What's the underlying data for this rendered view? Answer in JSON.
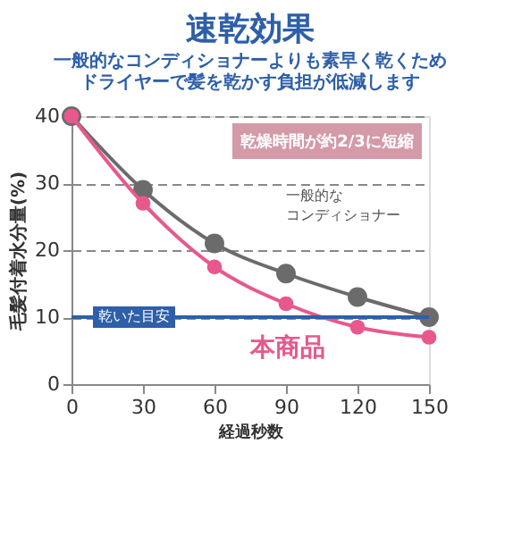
{
  "chart_data": {
    "type": "line",
    "title": "速乾効果",
    "subtitle": [
      "一般的なコンディショナーよりも素早く乾くため",
      "ドライヤーで髪を乾かす負担が低減します"
    ],
    "xlabel": "経過秒数",
    "ylabel": "毛髪付着水分量(%)",
    "x": [
      0,
      30,
      60,
      90,
      120,
      150
    ],
    "series": [
      {
        "name": "一般的なコンディショナー",
        "color": "#6b6b6b",
        "values": [
          40,
          29,
          21,
          16.5,
          13,
          10
        ]
      },
      {
        "name": "本商品",
        "color": "#e8588c",
        "values": [
          40,
          27,
          17.5,
          12,
          8.5,
          7
        ]
      }
    ],
    "xlim": [
      0,
      150
    ],
    "xticks": [
      0,
      30,
      60,
      90,
      120,
      150
    ],
    "ylim": [
      0,
      40
    ],
    "yticks": [
      0,
      10,
      20,
      30,
      40
    ],
    "grid": "y",
    "marker": "circle",
    "line_style": "solid",
    "ref_lines": [
      {
        "axis": "y",
        "value": 10,
        "label": "乾いた目安",
        "color": "#2e5fa8"
      }
    ],
    "annotations": [
      "乾燥時間が約2/3に短縮"
    ]
  }
}
